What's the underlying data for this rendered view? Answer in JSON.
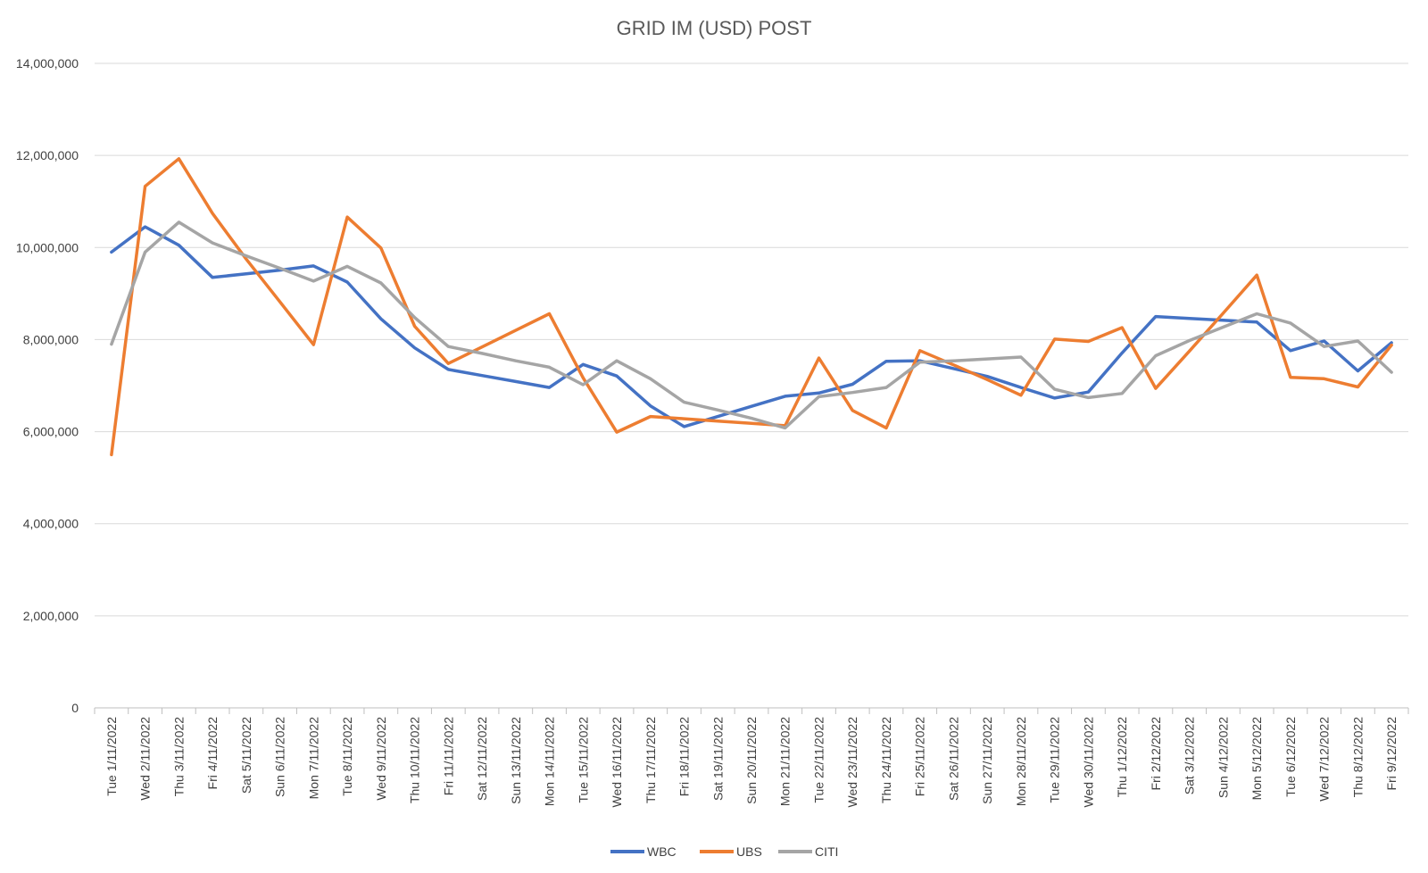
{
  "chart_data": {
    "type": "line",
    "title": "GRID IM (USD) POST",
    "xlabel": "",
    "ylabel": "",
    "ylim": [
      0,
      14000000
    ],
    "yticks": [
      {
        "value": 0,
        "label": "0"
      },
      {
        "value": 2000000,
        "label": "2,000,000"
      },
      {
        "value": 4000000,
        "label": "4,000,000"
      },
      {
        "value": 6000000,
        "label": "6,000,000"
      },
      {
        "value": 8000000,
        "label": "8,000,000"
      },
      {
        "value": 10000000,
        "label": "10,000,000"
      },
      {
        "value": 12000000,
        "label": "12,000,000"
      },
      {
        "value": 14000000,
        "label": "14,000,000"
      }
    ],
    "grid": true,
    "legend": "bottom",
    "categories": [
      "Tue 1/11/2022",
      "Wed 2/11/2022",
      "Thu 3/11/2022",
      "Fri 4/11/2022",
      "Sat 5/11/2022",
      "Sun 6/11/2022",
      "Mon 7/11/2022",
      "Tue 8/11/2022",
      "Wed 9/11/2022",
      "Thu 10/11/2022",
      "Fri 11/11/2022",
      "Sat 12/11/2022",
      "Sun 13/11/2022",
      "Mon 14/11/2022",
      "Tue 15/11/2022",
      "Wed 16/11/2022",
      "Thu 17/11/2022",
      "Fri 18/11/2022",
      "Sat 19/11/2022",
      "Sun 20/11/2022",
      "Mon 21/11/2022",
      "Tue 22/11/2022",
      "Wed 23/11/2022",
      "Thu 24/11/2022",
      "Fri 25/11/2022",
      "Sat 26/11/2022",
      "Sun 27/11/2022",
      "Mon 28/11/2022",
      "Tue 29/11/2022",
      "Wed 30/11/2022",
      "Thu 1/12/2022",
      "Fri 2/12/2022",
      "Sat 3/12/2022",
      "Sun 4/12/2022",
      "Mon 5/12/2022",
      "Tue 6/12/2022",
      "Wed 7/12/2022",
      "Thu 8/12/2022",
      "Fri 9/12/2022"
    ],
    "series": [
      {
        "name": "WBC",
        "color": "#4472C4",
        "values": [
          9900000,
          10450000,
          10050000,
          9350000,
          9430000,
          9510000,
          9600000,
          9250000,
          8450000,
          7820000,
          7350000,
          7220000,
          7090000,
          6960000,
          7460000,
          7210000,
          6560000,
          6110000,
          6330000,
          6550000,
          6770000,
          6840000,
          7030000,
          7530000,
          7540000,
          7370000,
          7200000,
          6960000,
          6730000,
          6860000,
          7710000,
          8500000,
          8460000,
          8420000,
          8380000,
          7760000,
          7970000,
          7320000,
          7930000
        ]
      },
      {
        "name": "UBS",
        "color": "#ED7D31",
        "values": [
          5500000,
          11330000,
          11930000,
          10740000,
          9750000,
          8820000,
          7890000,
          10660000,
          9990000,
          8290000,
          7480000,
          7840000,
          8200000,
          8560000,
          7170000,
          5990000,
          6330000,
          6280000,
          6230000,
          6180000,
          6130000,
          7600000,
          6460000,
          6080000,
          7760000,
          7450000,
          7130000,
          6790000,
          8010000,
          7960000,
          8260000,
          6940000,
          7750000,
          8570000,
          9400000,
          7180000,
          7150000,
          6970000,
          7880000
        ]
      },
      {
        "name": "CITI",
        "color": "#A5A5A5",
        "values": [
          7900000,
          9900000,
          10550000,
          10100000,
          9820000,
          9550000,
          9270000,
          9590000,
          9230000,
          8480000,
          7850000,
          7700000,
          7540000,
          7400000,
          7020000,
          7540000,
          7150000,
          6640000,
          6470000,
          6290000,
          6080000,
          6760000,
          6850000,
          6960000,
          7510000,
          7540000,
          7580000,
          7620000,
          6920000,
          6740000,
          6830000,
          7650000,
          7980000,
          8270000,
          8560000,
          8360000,
          7850000,
          7970000,
          7290000
        ]
      }
    ]
  }
}
